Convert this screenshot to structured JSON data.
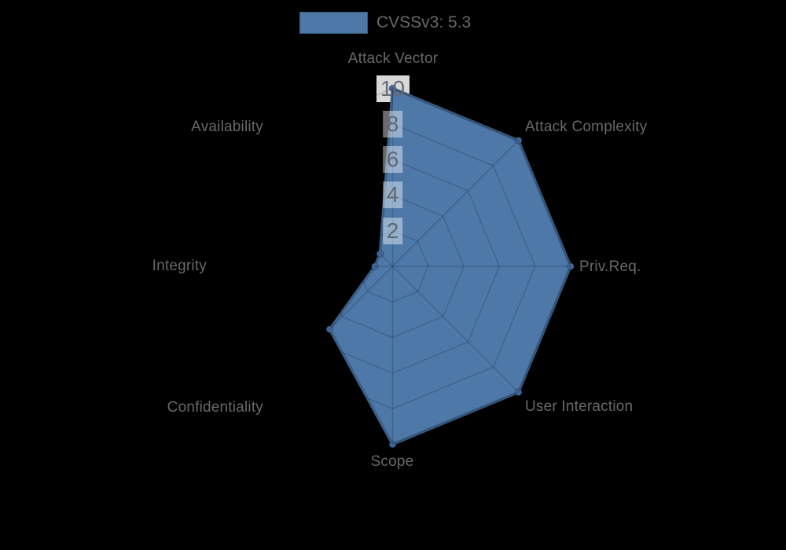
{
  "chart_data": {
    "type": "radar",
    "title": "CVSSv3: 5.3",
    "legend_label": "CVSSv3: 5.3",
    "score": 5.3,
    "axes": [
      {
        "label": "Attack Vector",
        "value": 10
      },
      {
        "label": "Attack Complexity",
        "value": 10
      },
      {
        "label": "Priv.Req.",
        "value": 10
      },
      {
        "label": "User Interaction",
        "value": 10
      },
      {
        "label": "Scope",
        "value": 10
      },
      {
        "label": "Confidentiality",
        "value": 5
      },
      {
        "label": "Integrity",
        "value": 1
      },
      {
        "label": "Availability",
        "value": 1
      }
    ],
    "ticks": [
      2,
      4,
      6,
      8,
      10
    ],
    "rmin": 0,
    "rmax": 10,
    "grid": "on",
    "legend_position": "top",
    "colors": {
      "fill": "#4d78a8",
      "stroke": "#3c5f86",
      "point": "#40699c",
      "grid_line": "rgba(0,0,0,0.16)",
      "label_text": "#686868",
      "tick_text": "#5e6873",
      "tick_backdrop": "rgba(255,255,255,0.42)",
      "background": "#000000"
    }
  }
}
